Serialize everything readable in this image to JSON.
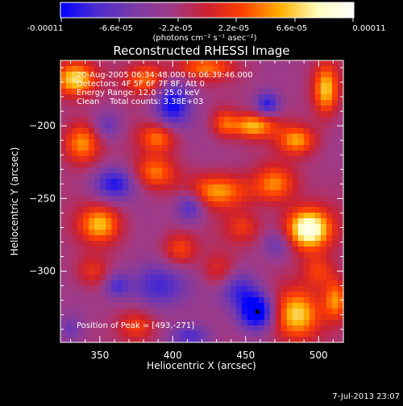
{
  "colorbar": {
    "tick_labels": [
      "-0.00011",
      "-6.6e-05",
      "-2.2e-05",
      "2.2e-05",
      "6.6e-05",
      "0.00011"
    ],
    "unit": "(photons cm⁻² s⁻¹ asec⁻²)",
    "range": [
      -0.00011,
      0.00011
    ],
    "colormap": [
      "#0000ff",
      "#4b2bd0",
      "#7a3aa8",
      "#a03a86",
      "#cc2030",
      "#ff4000",
      "#ffb000",
      "#ffffc0",
      "#ffffff"
    ]
  },
  "info_lines": [
    "20-Aug-2005 06:34:48.000 to 06:39:46.000",
    "Detectors: 4F 5F 6F 7F 8F, Att 0",
    "Energy Range: 12.0 - 25.0 keV",
    "Clean    Total counts: 3.38E+03"
  ],
  "peak_text": "Position of Peak = [493,-271]",
  "footer_timestamp": "7-Jul-2013 23:07",
  "chart_data": {
    "type": "heatmap",
    "title": "Reconstructed RHESSI Image",
    "xlabel": "Heliocentric X (arcsec)",
    "ylabel": "Heliocentric Y (arcsec)",
    "xlim": [
      323,
      517
    ],
    "ylim": [
      -349,
      -155
    ],
    "x_ticks": [
      350,
      400,
      450,
      500
    ],
    "y_ticks": [
      -200,
      -250,
      -300
    ],
    "x_tick_labels": [
      "350",
      "400",
      "450",
      "500"
    ],
    "y_tick_labels": [
      "−200",
      "−250",
      "−300"
    ],
    "value_range": [
      -0.00011,
      0.00011
    ],
    "grid": false,
    "peak": {
      "x": 493,
      "y": -271
    },
    "marked_point": {
      "x": 458,
      "y": -328
    },
    "blobs": [
      {
        "x": 333,
        "y": -168,
        "sx": 10,
        "sy": 8,
        "v": 1.0
      },
      {
        "x": 338,
        "y": -212,
        "sx": 9,
        "sy": 10,
        "v": 0.85
      },
      {
        "x": 382,
        "y": -168,
        "sx": 11,
        "sy": 8,
        "v": 0.75
      },
      {
        "x": 422,
        "y": -160,
        "sx": 14,
        "sy": 6,
        "v": 0.65
      },
      {
        "x": 390,
        "y": -208,
        "sx": 9,
        "sy": 7,
        "v": 0.7
      },
      {
        "x": 388,
        "y": -232,
        "sx": 10,
        "sy": 8,
        "v": 0.7
      },
      {
        "x": 435,
        "y": -198,
        "sx": 6,
        "sy": 7,
        "v": 0.55
      },
      {
        "x": 455,
        "y": -200,
        "sx": 11,
        "sy": 6,
        "v": 0.9
      },
      {
        "x": 485,
        "y": -210,
        "sx": 9,
        "sy": 7,
        "v": 0.8
      },
      {
        "x": 505,
        "y": -175,
        "sx": 6,
        "sy": 12,
        "v": 0.95
      },
      {
        "x": 430,
        "y": -245,
        "sx": 16,
        "sy": 8,
        "v": 0.8
      },
      {
        "x": 470,
        "y": -240,
        "sx": 10,
        "sy": 9,
        "v": 0.75
      },
      {
        "x": 493,
        "y": -271,
        "sx": 11,
        "sy": 10,
        "v": 1.4
      },
      {
        "x": 448,
        "y": -270,
        "sx": 9,
        "sy": 8,
        "v": 0.45
      },
      {
        "x": 350,
        "y": -268,
        "sx": 10,
        "sy": 9,
        "v": 0.9
      },
      {
        "x": 345,
        "y": -300,
        "sx": 8,
        "sy": 8,
        "v": 0.45
      },
      {
        "x": 375,
        "y": -338,
        "sx": 9,
        "sy": 8,
        "v": 0.5
      },
      {
        "x": 405,
        "y": -285,
        "sx": 8,
        "sy": 8,
        "v": 0.55
      },
      {
        "x": 432,
        "y": -300,
        "sx": 8,
        "sy": 9,
        "v": 0.45
      },
      {
        "x": 500,
        "y": -300,
        "sx": 8,
        "sy": 8,
        "v": 0.5
      },
      {
        "x": 485,
        "y": -330,
        "sx": 12,
        "sy": 12,
        "v": 1.0
      },
      {
        "x": 512,
        "y": -320,
        "sx": 6,
        "sy": 10,
        "v": 0.8
      },
      {
        "x": 400,
        "y": -185,
        "sx": 9,
        "sy": 12,
        "v": -0.9
      },
      {
        "x": 465,
        "y": -185,
        "sx": 6,
        "sy": 6,
        "v": -0.75
      },
      {
        "x": 360,
        "y": -240,
        "sx": 10,
        "sy": 8,
        "v": -0.8
      },
      {
        "x": 412,
        "y": -255,
        "sx": 7,
        "sy": 8,
        "v": -0.7
      },
      {
        "x": 390,
        "y": -310,
        "sx": 14,
        "sy": 11,
        "v": -0.7
      },
      {
        "x": 445,
        "y": -312,
        "sx": 10,
        "sy": 9,
        "v": -0.6
      },
      {
        "x": 458,
        "y": -328,
        "sx": 9,
        "sy": 9,
        "v": -1.2
      },
      {
        "x": 412,
        "y": -345,
        "sx": 10,
        "sy": 6,
        "v": -0.6
      },
      {
        "x": 362,
        "y": -310,
        "sx": 6,
        "sy": 6,
        "v": -0.55
      },
      {
        "x": 355,
        "y": -200,
        "sx": 7,
        "sy": 7,
        "v": -0.45
      },
      {
        "x": 472,
        "y": -282,
        "sx": 7,
        "sy": 7,
        "v": -0.45
      },
      {
        "x": 330,
        "y": -340,
        "sx": 6,
        "sy": 7,
        "v": -0.4
      }
    ]
  }
}
